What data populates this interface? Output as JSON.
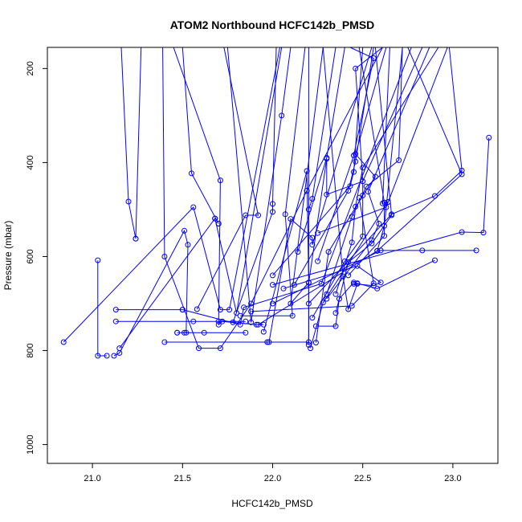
{
  "chart_data": {
    "type": "line",
    "title": "ATOM2 Northbound HCFC142b_PMSD",
    "xlabel": "HCFC142b_PMSD",
    "ylabel": "Pressure (mbar)",
    "xlim": [
      20.75,
      23.25
    ],
    "ylim": [
      1040,
      155
    ],
    "y_reversed": true,
    "x_ticks": [
      21.0,
      21.5,
      22.0,
      22.5,
      23.0
    ],
    "x_tick_labels": [
      "21.0",
      "21.5",
      "22.0",
      "22.5",
      "23.0"
    ],
    "y_ticks": [
      200,
      400,
      600,
      800,
      1000
    ],
    "y_tick_labels": [
      "200",
      "400",
      "600",
      "800",
      "1000"
    ],
    "grid": false,
    "legend": "none",
    "series_color": "#0000ff",
    "marker": "open-circle",
    "series": [
      {
        "points": [
          [
            21.39,
            155
          ],
          [
            21.4,
            600
          ],
          [
            21.59,
            795
          ],
          [
            21.71,
            795
          ],
          [
            21.88,
            700
          ],
          [
            22.19,
            460
          ],
          [
            22.61,
            155
          ]
        ]
      },
      {
        "points": [
          [
            21.03,
            608
          ],
          [
            21.03,
            811
          ],
          [
            21.08,
            811
          ]
        ]
      },
      {
        "points": [
          [
            21.12,
            811
          ],
          [
            21.15,
            805
          ],
          [
            21.51,
            545
          ],
          [
            21.53,
            575
          ],
          [
            21.52,
            762
          ],
          [
            21.47,
            762
          ],
          [
            21.47,
            762
          ]
        ]
      },
      {
        "points": [
          [
            21.16,
            155
          ],
          [
            21.2,
            483
          ],
          [
            21.24,
            562
          ],
          [
            21.24,
            562
          ],
          [
            21.27,
            155
          ]
        ]
      },
      {
        "points": [
          [
            21.5,
            155
          ],
          [
            21.55,
            423
          ],
          [
            21.7,
            530
          ],
          [
            21.7,
            530
          ]
        ]
      },
      {
        "points": [
          [
            21.15,
            795
          ],
          [
            21.68,
            519
          ],
          [
            21.68,
            519
          ],
          [
            21.8,
            720
          ],
          [
            22.05,
            155
          ]
        ]
      },
      {
        "points": [
          [
            21.4,
            782
          ],
          [
            21.97,
            782
          ],
          [
            22.2,
            782
          ],
          [
            22.2,
            155
          ]
        ]
      },
      {
        "points": [
          [
            20.84,
            782
          ],
          [
            21.56,
            495
          ],
          [
            21.71,
            713
          ],
          [
            21.76,
            713
          ],
          [
            22.04,
            155
          ]
        ]
      },
      {
        "points": [
          [
            21.13,
            713
          ],
          [
            21.5,
            713
          ],
          [
            21.5,
            713
          ],
          [
            21.82,
            745
          ],
          [
            21.84,
            708
          ],
          [
            22.27,
            658
          ],
          [
            22.77,
            155
          ]
        ]
      },
      {
        "points": [
          [
            21.13,
            738
          ],
          [
            21.56,
            738
          ],
          [
            21.7,
            738
          ],
          [
            21.85,
            738
          ]
        ]
      },
      {
        "points": [
          [
            21.51,
            762
          ],
          [
            21.62,
            762
          ],
          [
            21.85,
            762
          ]
        ]
      },
      {
        "points": [
          [
            21.45,
            155
          ],
          [
            21.71,
            438
          ],
          [
            21.7,
            745
          ],
          [
            21.72,
            738
          ],
          [
            21.91,
            745
          ],
          [
            21.95,
            745
          ]
        ]
      },
      {
        "points": [
          [
            21.75,
            155
          ],
          [
            21.88,
            740
          ],
          [
            22.05,
            300
          ],
          [
            22.1,
            155
          ]
        ]
      },
      {
        "points": [
          [
            21.73,
            155
          ],
          [
            21.92,
            512
          ],
          [
            21.85,
            512
          ],
          [
            21.58,
            712
          ]
        ]
      },
      {
        "points": [
          [
            21.78,
            740
          ],
          [
            22.0,
            505
          ],
          [
            22.0,
            488
          ],
          [
            22.02,
            155
          ]
        ]
      },
      {
        "points": [
          [
            21.82,
            726
          ],
          [
            22.11,
            726
          ],
          [
            22.07,
            510
          ],
          [
            22.18,
            155
          ]
        ]
      },
      {
        "points": [
          [
            21.88,
            717
          ],
          [
            22.44,
            705
          ],
          [
            22.56,
            657
          ],
          [
            22.48,
            475
          ]
        ]
      },
      {
        "points": [
          [
            21.95,
            760
          ],
          [
            22.19,
            418
          ],
          [
            22.2,
            655
          ],
          [
            22.1,
            700
          ],
          [
            22.28,
            155
          ]
        ]
      },
      {
        "points": [
          [
            21.98,
            782
          ],
          [
            22.1,
            520
          ],
          [
            22.22,
            560
          ],
          [
            22.22,
            575
          ],
          [
            22.55,
            155
          ]
        ]
      },
      {
        "points": [
          [
            21.92,
            745
          ],
          [
            22.58,
            588
          ],
          [
            22.62,
            535
          ],
          [
            22.72,
            155
          ]
        ]
      },
      {
        "points": [
          [
            22.0,
            700
          ],
          [
            22.6,
            587
          ],
          [
            22.83,
            587
          ],
          [
            23.13,
            587
          ]
        ]
      },
      {
        "points": [
          [
            22.0,
            660
          ],
          [
            23.05,
            548
          ],
          [
            23.17,
            549
          ],
          [
            23.2,
            347
          ]
        ]
      },
      {
        "points": [
          [
            22.06,
            668
          ],
          [
            22.47,
            620
          ],
          [
            22.6,
            655
          ],
          [
            22.56,
            662
          ],
          [
            22.45,
            658
          ]
        ]
      },
      {
        "points": [
          [
            22.24,
            748
          ],
          [
            22.35,
            748
          ],
          [
            22.37,
            690
          ],
          [
            22.45,
            655
          ],
          [
            22.58,
            668
          ],
          [
            22.9,
            608
          ]
        ]
      },
      {
        "points": [
          [
            22.24,
            783
          ],
          [
            22.31,
            590
          ],
          [
            22.5,
            470
          ],
          [
            22.57,
            430
          ],
          [
            22.46,
            382
          ],
          [
            22.63,
            155
          ]
        ]
      },
      {
        "points": [
          [
            22.28,
            155
          ],
          [
            22.39,
            642
          ],
          [
            22.42,
            712
          ],
          [
            22.47,
            658
          ],
          [
            22.47,
            657
          ]
        ]
      },
      {
        "points": [
          [
            22.2,
            788
          ],
          [
            22.2,
            656
          ],
          [
            22.3,
            392
          ],
          [
            22.3,
            468
          ],
          [
            22.5,
            440
          ],
          [
            22.83,
            155
          ]
        ]
      },
      {
        "points": [
          [
            22.21,
            795
          ],
          [
            22.28,
            698
          ],
          [
            22.64,
            484
          ],
          [
            22.64,
            484
          ],
          [
            22.61,
            487
          ],
          [
            22.65,
            155
          ]
        ]
      },
      {
        "points": [
          [
            22.3,
            680
          ],
          [
            22.44,
            515
          ],
          [
            22.52,
            451
          ],
          [
            22.7,
            395
          ],
          [
            22.72,
            155
          ]
        ]
      },
      {
        "points": [
          [
            22.35,
            680
          ],
          [
            22.44,
            570
          ],
          [
            22.46,
            494
          ],
          [
            22.5,
            411
          ],
          [
            22.92,
            155
          ]
        ]
      },
      {
        "points": [
          [
            22.42,
            640
          ],
          [
            22.62,
            556
          ],
          [
            22.62,
            485
          ],
          [
            22.48,
            155
          ]
        ]
      },
      {
        "points": [
          [
            22.35,
            720
          ],
          [
            22.42,
            612
          ],
          [
            22.55,
            572
          ],
          [
            22.66,
            512
          ],
          [
            22.57,
            155
          ]
        ]
      },
      {
        "points": [
          [
            22.2,
            700
          ],
          [
            22.66,
            510
          ],
          [
            22.9,
            471
          ],
          [
            23.05,
            417
          ],
          [
            22.98,
            155
          ]
        ]
      },
      {
        "points": [
          [
            22.22,
            730
          ],
          [
            22.4,
            610
          ],
          [
            22.5,
            557
          ],
          [
            22.5,
            440
          ],
          [
            22.46,
            200
          ],
          [
            22.61,
            155
          ]
        ]
      },
      {
        "points": [
          [
            22.3,
            690
          ],
          [
            22.55,
            565
          ],
          [
            22.59,
            530
          ],
          [
            22.53,
            462
          ],
          [
            22.87,
            155
          ]
        ]
      },
      {
        "points": [
          [
            22.12,
            660
          ],
          [
            22.42,
            460
          ],
          [
            22.46,
            398
          ],
          [
            22.56,
            155
          ]
        ]
      },
      {
        "points": [
          [
            22.25,
            610
          ],
          [
            22.45,
            385
          ],
          [
            22.56,
            178
          ],
          [
            22.43,
            155
          ]
        ]
      },
      {
        "points": [
          [
            22.14,
            590
          ],
          [
            22.3,
            390
          ],
          [
            22.4,
            155
          ]
        ]
      },
      {
        "points": [
          [
            22.0,
            640
          ],
          [
            22.43,
            450
          ],
          [
            22.45,
            420
          ],
          [
            22.5,
            155
          ]
        ]
      },
      {
        "points": [
          [
            22.2,
            500
          ],
          [
            22.22,
            477
          ],
          [
            22.35,
            155
          ]
        ]
      },
      {
        "points": [
          [
            22.58,
            588
          ],
          [
            23.05,
            425
          ],
          [
            22.75,
            155
          ]
        ]
      },
      {
        "points": [
          [
            22.25,
            550
          ],
          [
            22.63,
            495
          ],
          [
            22.97,
            155
          ]
        ]
      }
    ]
  }
}
